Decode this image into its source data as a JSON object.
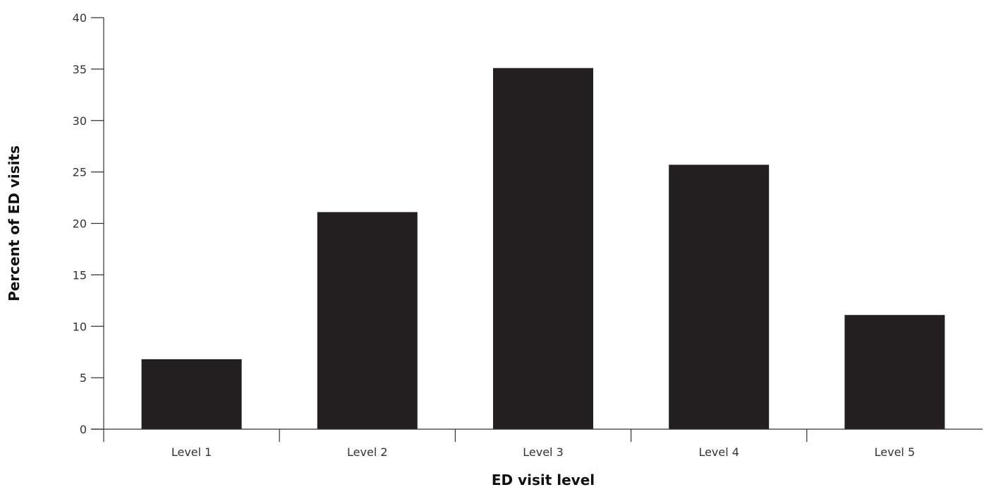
{
  "chart_data": {
    "type": "bar",
    "categories": [
      "Level 1",
      "Level 2",
      "Level 3",
      "Level 4",
      "Level 5"
    ],
    "values": [
      6.8,
      21.1,
      35.1,
      25.7,
      11.1
    ],
    "xlabel": "ED visit level",
    "ylabel": "Percent of ED visits",
    "ylim": [
      0,
      40
    ],
    "yticks": [
      0,
      5,
      10,
      15,
      20,
      25,
      30,
      35,
      40
    ],
    "bar_color": "#231f20",
    "grid": false,
    "legend": "none"
  }
}
